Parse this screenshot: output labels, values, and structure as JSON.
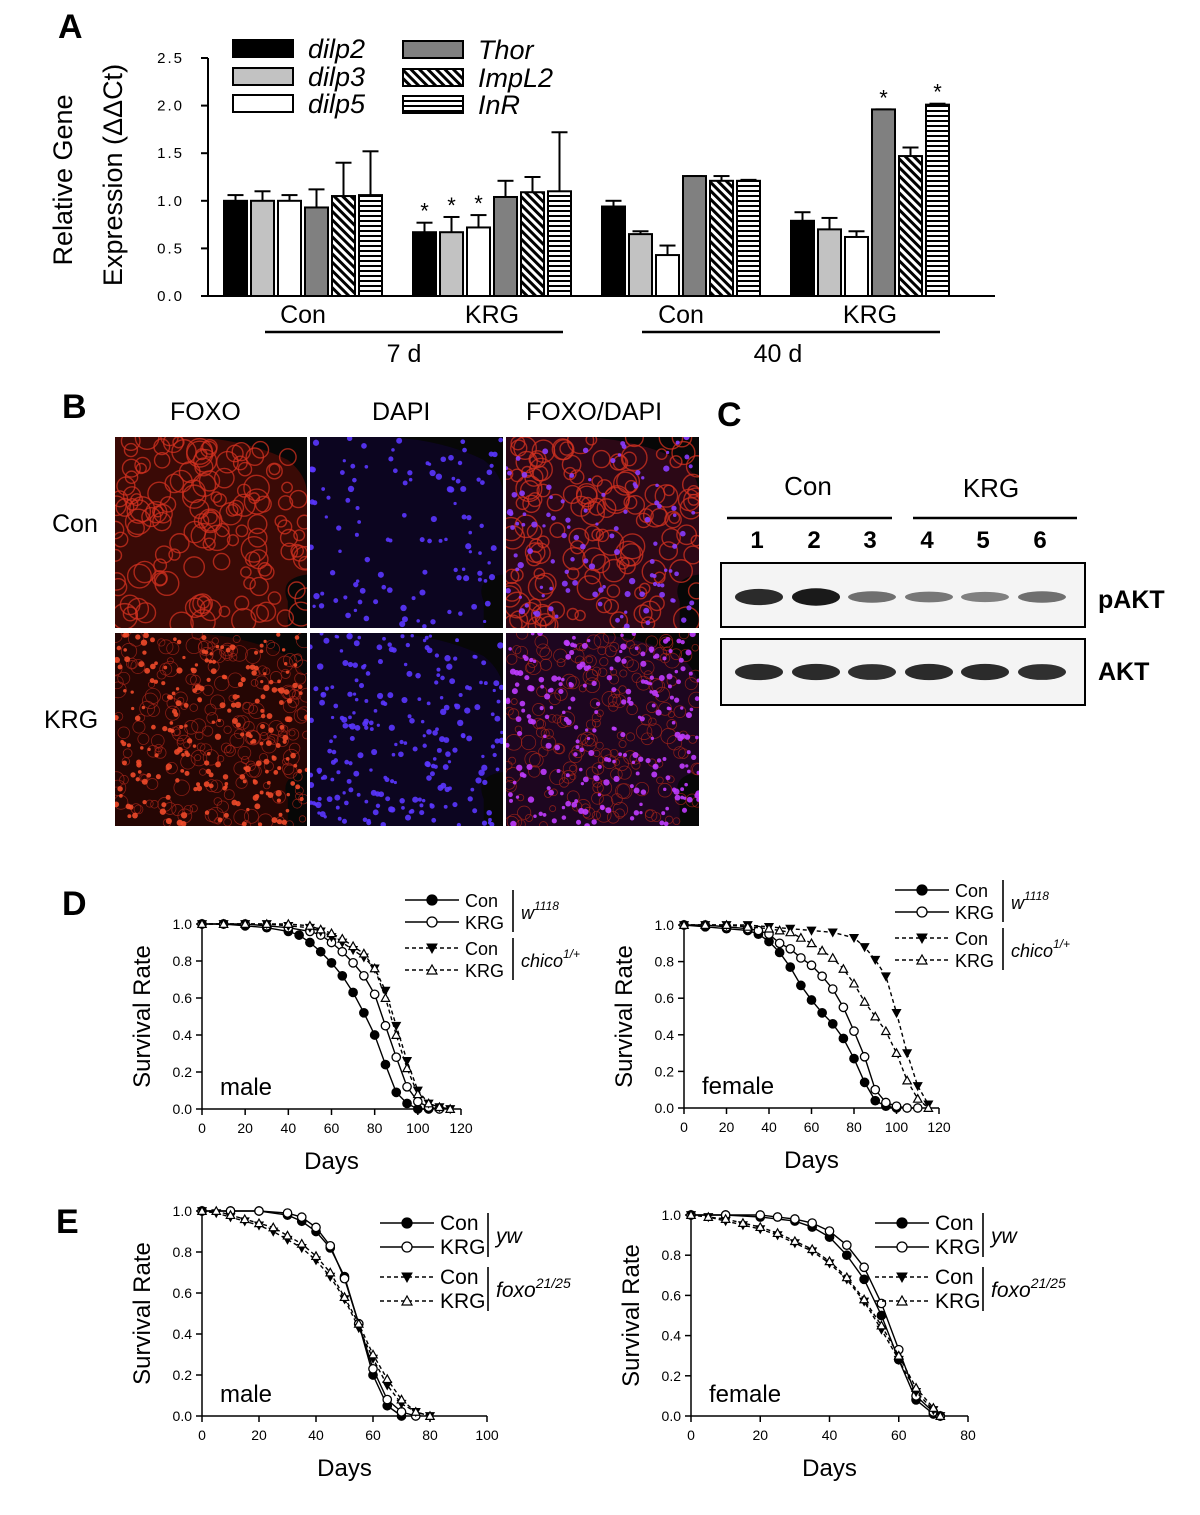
{
  "panels": {
    "A": "A",
    "B": "B",
    "C": "C",
    "D": "D",
    "E": "E"
  },
  "chart_data": [
    {
      "id": "A",
      "type": "bar",
      "ylabel_line1": "Relative Gene",
      "ylabel_line2": "Expression (ΔΔCt)",
      "ylim": [
        0,
        2.5
      ],
      "yticks": [
        "0.0",
        "0.5",
        "1.0",
        "1.5",
        "2.0",
        "2.5"
      ],
      "groups": [
        "Con",
        "KRG",
        "Con",
        "KRG"
      ],
      "timepoints": [
        "7 d",
        "40 d"
      ],
      "series": [
        {
          "name": "dilp2",
          "fill": "#000000",
          "values": [
            1.0,
            0.67,
            0.94,
            0.79
          ],
          "errors": [
            0.06,
            0.1,
            0.06,
            0.09
          ],
          "sig": [
            false,
            true,
            false,
            false
          ]
        },
        {
          "name": "dilp3",
          "fill": "#c2c2c2",
          "values": [
            1.0,
            0.67,
            0.65,
            0.7
          ],
          "errors": [
            0.1,
            0.16,
            0.03,
            0.12
          ],
          "sig": [
            false,
            true,
            false,
            false
          ]
        },
        {
          "name": "dilp5",
          "fill": "#ffffff",
          "values": [
            1.0,
            0.72,
            0.43,
            0.62
          ],
          "errors": [
            0.06,
            0.13,
            0.1,
            0.06
          ],
          "sig": [
            false,
            true,
            false,
            false
          ]
        },
        {
          "name": "Thor",
          "fill": "#808080",
          "values": [
            0.93,
            1.04,
            1.26,
            1.96
          ],
          "errors": [
            0.19,
            0.17,
            0.0,
            0.0
          ],
          "sig": [
            false,
            false,
            false,
            true
          ]
        },
        {
          "name": "ImpL2",
          "fill": "hatch-diag",
          "values": [
            1.05,
            1.09,
            1.21,
            1.47
          ],
          "errors": [
            0.35,
            0.16,
            0.05,
            0.09
          ],
          "sig": [
            false,
            false,
            false,
            false
          ]
        },
        {
          "name": "InR",
          "fill": "hatch-horiz",
          "values": [
            1.06,
            1.1,
            1.21,
            2.01
          ],
          "errors": [
            0.46,
            0.62,
            0.01,
            0.01
          ],
          "sig": [
            false,
            false,
            false,
            true
          ]
        }
      ],
      "sig_mark": "*"
    },
    {
      "id": "D-male",
      "type": "line",
      "xlabel": "Days",
      "ylabel": "Survival Rate",
      "annotation": "male",
      "xlim": [
        0,
        120
      ],
      "ylim": [
        0,
        1.0
      ],
      "xticks": [
        "0",
        "20",
        "40",
        "60",
        "80",
        "100",
        "120"
      ],
      "yticks": [
        "0.0",
        "0.2",
        "0.4",
        "0.6",
        "0.8",
        "1.0"
      ],
      "series": [
        {
          "name": "Con",
          "marker": "filled-circle",
          "line": "solid",
          "x": [
            0,
            10,
            20,
            30,
            40,
            45,
            50,
            55,
            60,
            65,
            70,
            75,
            80,
            85,
            90,
            95,
            100,
            105
          ],
          "y": [
            1.0,
            1.0,
            0.99,
            0.98,
            0.96,
            0.94,
            0.9,
            0.85,
            0.79,
            0.72,
            0.63,
            0.52,
            0.4,
            0.24,
            0.09,
            0.03,
            0.0,
            0.0
          ]
        },
        {
          "name": "KRG",
          "marker": "open-circle",
          "line": "solid",
          "x": [
            0,
            10,
            20,
            30,
            40,
            50,
            55,
            60,
            65,
            70,
            75,
            80,
            85,
            90,
            95,
            100,
            105,
            110
          ],
          "y": [
            1.0,
            1.0,
            1.0,
            0.99,
            0.98,
            0.96,
            0.94,
            0.9,
            0.85,
            0.79,
            0.72,
            0.62,
            0.45,
            0.28,
            0.12,
            0.04,
            0.01,
            0.0
          ]
        },
        {
          "name": "Con",
          "marker": "filled-triangle-down",
          "line": "dashed",
          "x": [
            0,
            10,
            20,
            30,
            40,
            50,
            55,
            60,
            65,
            70,
            75,
            80,
            85,
            90,
            95,
            100,
            105,
            110,
            115
          ],
          "y": [
            1.0,
            1.0,
            1.0,
            1.0,
            0.99,
            0.98,
            0.96,
            0.93,
            0.9,
            0.86,
            0.82,
            0.76,
            0.64,
            0.45,
            0.26,
            0.1,
            0.03,
            0.01,
            0.0
          ]
        },
        {
          "name": "KRG",
          "marker": "open-triangle-up",
          "line": "dashed",
          "x": [
            0,
            10,
            20,
            30,
            40,
            50,
            55,
            60,
            65,
            70,
            75,
            80,
            85,
            90,
            95,
            100,
            105,
            110,
            115
          ],
          "y": [
            1.0,
            1.0,
            1.0,
            1.0,
            1.0,
            0.99,
            0.97,
            0.95,
            0.92,
            0.88,
            0.84,
            0.76,
            0.6,
            0.4,
            0.22,
            0.08,
            0.03,
            0.01,
            0.0
          ]
        }
      ],
      "legend_groups": [
        {
          "labels": [
            "Con",
            "KRG"
          ],
          "genotype": "w",
          "sup": "1118"
        },
        {
          "labels": [
            "Con",
            "KRG"
          ],
          "genotype": "chico",
          "sup": "1/+"
        }
      ]
    },
    {
      "id": "D-female",
      "type": "line",
      "xlabel": "Days",
      "ylabel": "Survival Rate",
      "annotation": "female",
      "xlim": [
        0,
        120
      ],
      "ylim": [
        0,
        1.0
      ],
      "xticks": [
        "0",
        "20",
        "40",
        "60",
        "80",
        "100",
        "120"
      ],
      "yticks": [
        "0.0",
        "0.2",
        "0.4",
        "0.6",
        "0.8",
        "1.0"
      ],
      "series": [
        {
          "name": "Con",
          "marker": "filled-circle",
          "line": "solid",
          "x": [
            0,
            10,
            20,
            30,
            35,
            40,
            45,
            50,
            55,
            60,
            65,
            70,
            75,
            80,
            85,
            90,
            95,
            100
          ],
          "y": [
            1.0,
            0.99,
            0.98,
            0.97,
            0.95,
            0.91,
            0.85,
            0.77,
            0.67,
            0.59,
            0.52,
            0.46,
            0.38,
            0.27,
            0.14,
            0.04,
            0.01,
            0.0
          ]
        },
        {
          "name": "KRG",
          "marker": "open-circle",
          "line": "solid",
          "x": [
            0,
            10,
            20,
            30,
            35,
            40,
            45,
            50,
            55,
            60,
            65,
            70,
            75,
            80,
            85,
            90,
            95,
            100,
            105,
            110
          ],
          "y": [
            1.0,
            1.0,
            0.99,
            0.98,
            0.97,
            0.95,
            0.9,
            0.87,
            0.82,
            0.78,
            0.72,
            0.65,
            0.55,
            0.42,
            0.28,
            0.1,
            0.03,
            0.01,
            0.0,
            0.0
          ]
        },
        {
          "name": "Con",
          "marker": "filled-triangle-down",
          "line": "dashed",
          "x": [
            0,
            10,
            20,
            30,
            40,
            50,
            60,
            70,
            80,
            85,
            90,
            95,
            100,
            105,
            110,
            115
          ],
          "y": [
            1.0,
            1.0,
            1.0,
            1.0,
            0.99,
            0.98,
            0.97,
            0.96,
            0.93,
            0.88,
            0.81,
            0.72,
            0.52,
            0.3,
            0.12,
            0.02
          ]
        },
        {
          "name": "KRG",
          "marker": "open-triangle-up",
          "line": "dashed",
          "x": [
            0,
            10,
            20,
            30,
            40,
            45,
            50,
            55,
            60,
            65,
            70,
            75,
            80,
            85,
            90,
            95,
            100,
            105,
            110,
            115
          ],
          "y": [
            1.0,
            1.0,
            1.0,
            0.99,
            0.98,
            0.97,
            0.96,
            0.93,
            0.9,
            0.86,
            0.82,
            0.76,
            0.68,
            0.58,
            0.5,
            0.42,
            0.3,
            0.15,
            0.05,
            0.0
          ]
        }
      ],
      "legend_groups": [
        {
          "labels": [
            "Con",
            "KRG"
          ],
          "genotype": "w",
          "sup": "1118"
        },
        {
          "labels": [
            "Con",
            "KRG"
          ],
          "genotype": "chico",
          "sup": "1/+"
        }
      ]
    },
    {
      "id": "E-male",
      "type": "line",
      "xlabel": "Days",
      "ylabel": "Survival Rate",
      "annotation": "male",
      "xlim": [
        0,
        100
      ],
      "ylim": [
        0,
        1.0
      ],
      "xticks": [
        "0",
        "20",
        "40",
        "60",
        "80",
        "100"
      ],
      "yticks": [
        "0.0",
        "0.2",
        "0.4",
        "0.6",
        "0.8",
        "1.0"
      ],
      "series": [
        {
          "name": "Con",
          "marker": "filled-circle",
          "line": "solid",
          "x": [
            0,
            10,
            20,
            30,
            35,
            40,
            45,
            50,
            55,
            60,
            65,
            70
          ],
          "y": [
            1.0,
            1.0,
            1.0,
            0.98,
            0.95,
            0.9,
            0.82,
            0.68,
            0.45,
            0.2,
            0.05,
            0.0
          ]
        },
        {
          "name": "KRG",
          "marker": "open-circle",
          "line": "solid",
          "x": [
            0,
            10,
            20,
            30,
            35,
            40,
            45,
            50,
            55,
            60,
            65,
            70,
            75
          ],
          "y": [
            1.0,
            1.0,
            1.0,
            0.99,
            0.97,
            0.92,
            0.83,
            0.67,
            0.45,
            0.23,
            0.08,
            0.02,
            0.0
          ]
        },
        {
          "name": "Con",
          "marker": "filled-triangle-down",
          "line": "dashed",
          "x": [
            0,
            5,
            10,
            15,
            20,
            25,
            30,
            35,
            40,
            45,
            50,
            55,
            60,
            65,
            70,
            75,
            80
          ],
          "y": [
            1.0,
            0.99,
            0.97,
            0.95,
            0.93,
            0.9,
            0.86,
            0.82,
            0.76,
            0.68,
            0.57,
            0.43,
            0.28,
            0.15,
            0.06,
            0.02,
            0.0
          ]
        },
        {
          "name": "KRG",
          "marker": "open-triangle-up",
          "line": "dashed",
          "x": [
            0,
            5,
            10,
            15,
            20,
            25,
            30,
            35,
            40,
            45,
            50,
            55,
            60,
            65,
            70,
            75,
            80
          ],
          "y": [
            1.0,
            1.0,
            0.98,
            0.96,
            0.94,
            0.92,
            0.88,
            0.84,
            0.78,
            0.7,
            0.58,
            0.45,
            0.3,
            0.18,
            0.08,
            0.02,
            0.0
          ]
        }
      ],
      "legend_groups": [
        {
          "labels": [
            "Con",
            "KRG"
          ],
          "genotype": "yw",
          "sup": ""
        },
        {
          "labels": [
            "Con",
            "KRG"
          ],
          "genotype": "foxo",
          "sup": "21/25"
        }
      ]
    },
    {
      "id": "E-female",
      "type": "line",
      "xlabel": "Days",
      "ylabel": "Survival Rate",
      "annotation": "female",
      "xlim": [
        0,
        80
      ],
      "ylim": [
        0,
        1.0
      ],
      "xticks": [
        "0",
        "20",
        "40",
        "60",
        "80"
      ],
      "yticks": [
        "0.0",
        "0.2",
        "0.4",
        "0.6",
        "0.8",
        "1.0"
      ],
      "series": [
        {
          "name": "Con",
          "marker": "filled-circle",
          "line": "solid",
          "x": [
            0,
            10,
            20,
            30,
            35,
            40,
            45,
            50,
            55,
            60,
            65,
            70,
            72
          ],
          "y": [
            1.0,
            1.0,
            0.99,
            0.97,
            0.94,
            0.89,
            0.8,
            0.68,
            0.5,
            0.28,
            0.08,
            0.01,
            0.0
          ]
        },
        {
          "name": "KRG",
          "marker": "open-circle",
          "line": "solid",
          "x": [
            0,
            10,
            20,
            25,
            30,
            35,
            40,
            45,
            50,
            55,
            60,
            65,
            70,
            72
          ],
          "y": [
            1.0,
            1.0,
            1.0,
            0.99,
            0.98,
            0.96,
            0.92,
            0.85,
            0.74,
            0.56,
            0.33,
            0.1,
            0.02,
            0.0
          ]
        },
        {
          "name": "Con",
          "marker": "filled-triangle-down",
          "line": "dashed",
          "x": [
            0,
            5,
            10,
            15,
            20,
            25,
            30,
            35,
            40,
            45,
            50,
            55,
            60,
            65,
            70,
            72
          ],
          "y": [
            1.0,
            0.99,
            0.97,
            0.95,
            0.93,
            0.9,
            0.86,
            0.82,
            0.76,
            0.68,
            0.57,
            0.43,
            0.28,
            0.12,
            0.03,
            0.0
          ]
        },
        {
          "name": "KRG",
          "marker": "open-triangle-up",
          "line": "dashed",
          "x": [
            0,
            5,
            10,
            15,
            20,
            25,
            30,
            35,
            40,
            45,
            50,
            55,
            60,
            65,
            70,
            72
          ],
          "y": [
            1.0,
            0.99,
            0.98,
            0.96,
            0.94,
            0.91,
            0.87,
            0.83,
            0.77,
            0.69,
            0.58,
            0.45,
            0.3,
            0.14,
            0.04,
            0.0
          ]
        }
      ],
      "legend_groups": [
        {
          "labels": [
            "Con",
            "KRG"
          ],
          "genotype": "yw",
          "sup": ""
        },
        {
          "labels": [
            "Con",
            "KRG"
          ],
          "genotype": "foxo",
          "sup": "21/25"
        }
      ]
    }
  ],
  "microscopy": {
    "column_labels": [
      "FOXO",
      "DAPI",
      "FOXO/DAPI"
    ],
    "row_labels": [
      "Con",
      "KRG"
    ]
  },
  "western": {
    "group_labels": [
      "Con",
      "KRG"
    ],
    "lanes": [
      "1",
      "2",
      "3",
      "4",
      "5",
      "6"
    ],
    "rows": [
      {
        "label": "pAKT",
        "intensities": [
          0.85,
          0.95,
          0.45,
          0.4,
          0.35,
          0.45
        ]
      },
      {
        "label": "AKT",
        "intensities": [
          0.85,
          0.85,
          0.82,
          0.85,
          0.85,
          0.82
        ]
      }
    ]
  }
}
